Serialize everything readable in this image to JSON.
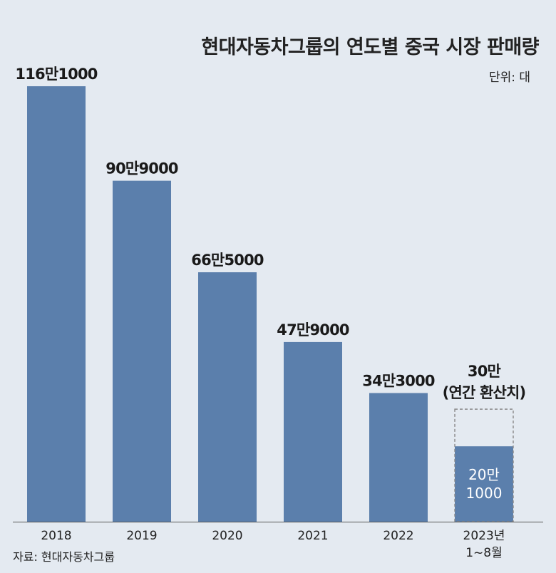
{
  "header": {
    "title": "현대자동차그룹의 연도별 중국 시장 판매량",
    "unit": "단위: 대"
  },
  "footer": {
    "source": "자료: 현대자동차그룹"
  },
  "colors": {
    "bar": "#5b7fac",
    "background": "#e4eaf1"
  },
  "chart_data": {
    "type": "bar",
    "title": "현대자동차그룹의 연도별 중국 시장 판매량",
    "ylabel": "",
    "xlabel": "",
    "ylim": [
      0,
      1161000
    ],
    "grid": false,
    "categories": [
      "2018",
      "2019",
      "2020",
      "2021",
      "2022",
      "2023년 1~8월"
    ],
    "category_lines": [
      [
        "2018"
      ],
      [
        "2019"
      ],
      [
        "2020"
      ],
      [
        "2021"
      ],
      [
        "2022"
      ],
      [
        "2023년",
        "1~8월"
      ]
    ],
    "values": [
      1161000,
      909000,
      665000,
      479000,
      343000,
      201000
    ],
    "labels": [
      "116만1000",
      "90만9000",
      "66만5000",
      "47만9000",
      "34만3000",
      "20만 1000"
    ],
    "label_lines": [
      [
        "116만1000"
      ],
      [
        "90만9000"
      ],
      [
        "66만5000"
      ],
      [
        "47만9000"
      ],
      [
        "34만3000"
      ],
      [
        "20만",
        "1000"
      ]
    ],
    "projection": {
      "category": "2023년 1~8월",
      "value": 300000,
      "label_lines": [
        "30만",
        "(연간 환산치)"
      ]
    }
  }
}
